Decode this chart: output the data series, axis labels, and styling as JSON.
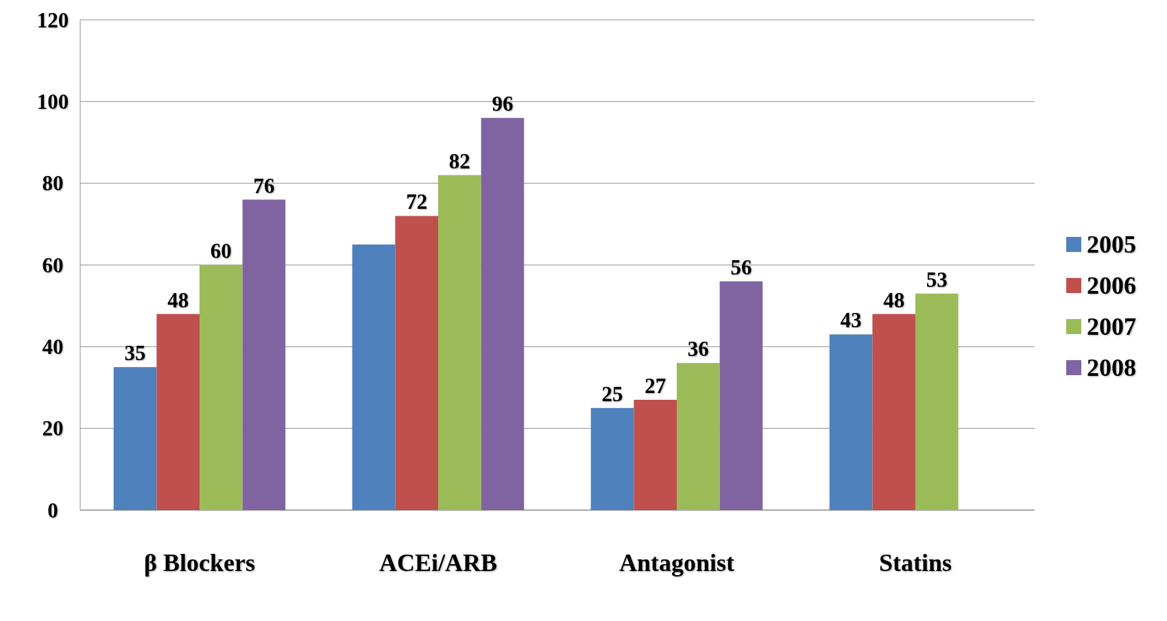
{
  "chart_data": {
    "type": "bar",
    "categories": [
      "β Blockers",
      "ACEi/ARB",
      "Antagonist",
      "Statins"
    ],
    "series": [
      {
        "name": "2005",
        "color": "#4f81bd",
        "values": [
          35,
          65,
          25,
          43
        ],
        "value_labels": [
          "35",
          null,
          "25",
          "43"
        ]
      },
      {
        "name": "2006",
        "color": "#c0504d",
        "values": [
          48,
          72,
          27,
          48
        ],
        "value_labels": [
          "48",
          "72",
          "27",
          "48"
        ]
      },
      {
        "name": "2007",
        "color": "#9bbb59",
        "values": [
          60,
          82,
          36,
          53
        ],
        "value_labels": [
          "60",
          "82",
          "36",
          "53"
        ]
      },
      {
        "name": "2008",
        "color": "#8064a2",
        "values": [
          76,
          96,
          56,
          null
        ],
        "value_labels": [
          "76",
          "96",
          "56",
          null
        ]
      }
    ],
    "ylim": [
      0,
      120
    ],
    "yticks": [
      0,
      20,
      40,
      60,
      80,
      100,
      120
    ],
    "grid": "y",
    "legend": "right"
  }
}
